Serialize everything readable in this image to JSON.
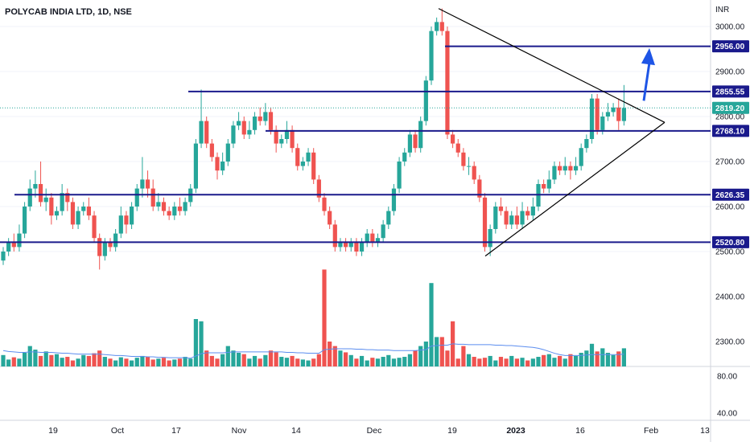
{
  "chart_data": {
    "type": "candlestick",
    "title": "POLYCAB INDIA LTD, 1D, NSE",
    "currency": "INR",
    "colors": {
      "up": "#26a69a",
      "down": "#ef5350",
      "level": "#1a1a8c",
      "last": "#26a69a",
      "volume_ma": "#5b8def",
      "trend": "#000000",
      "arrow": "#1e55e6"
    },
    "price_axis": {
      "ticks": [
        2500,
        2600,
        2700,
        2800,
        2900,
        3000
      ],
      "labels": [
        "2500.00",
        "2600.00",
        "2700.00",
        "2800.00",
        "2900.00",
        "3000.00"
      ],
      "ylim": [
        2455,
        3035
      ]
    },
    "volume_axis": {
      "ticks": [
        "2300.00",
        "2400.00"
      ]
    },
    "indicator_axis": {
      "ticks": [
        "80.00",
        "40.00"
      ]
    },
    "x_ticks": [
      "19",
      "Oct",
      "17",
      "Nov",
      "14",
      "Dec",
      "19",
      "2023",
      "16",
      "Feb",
      "13"
    ],
    "levels": [
      {
        "value": 2956.0,
        "label": "2956.00"
      },
      {
        "value": 2855.55,
        "label": "2855.55"
      },
      {
        "value": 2768.1,
        "label": "2768.10"
      },
      {
        "value": 2626.35,
        "label": "2626.35"
      },
      {
        "value": 2520.8,
        "label": "2520.80"
      }
    ],
    "last_price": {
      "value": 2819.2,
      "label": "2819.20"
    },
    "candles": [
      [
        2480,
        2500,
        2470,
        2510
      ],
      [
        2500,
        2520,
        2490,
        2530
      ],
      [
        2520,
        2510,
        2500,
        2540
      ],
      [
        2510,
        2540,
        2500,
        2560
      ],
      [
        2540,
        2600,
        2530,
        2610
      ],
      [
        2600,
        2640,
        2590,
        2660
      ],
      [
        2640,
        2650,
        2620,
        2680
      ],
      [
        2650,
        2610,
        2600,
        2700
      ],
      [
        2610,
        2620,
        2590,
        2640
      ],
      [
        2620,
        2580,
        2560,
        2630
      ],
      [
        2580,
        2590,
        2570,
        2600
      ],
      [
        2590,
        2630,
        2580,
        2650
      ],
      [
        2630,
        2610,
        2590,
        2640
      ],
      [
        2610,
        2560,
        2550,
        2620
      ],
      [
        2560,
        2590,
        2550,
        2600
      ],
      [
        2590,
        2600,
        2580,
        2610
      ],
      [
        2600,
        2580,
        2570,
        2620
      ],
      [
        2580,
        2530,
        2520,
        2590
      ],
      [
        2530,
        2490,
        2460,
        2540
      ],
      [
        2490,
        2520,
        2480,
        2530
      ],
      [
        2520,
        2510,
        2500,
        2530
      ],
      [
        2510,
        2540,
        2500,
        2550
      ],
      [
        2540,
        2580,
        2530,
        2600
      ],
      [
        2580,
        2560,
        2540,
        2590
      ],
      [
        2560,
        2600,
        2550,
        2610
      ],
      [
        2600,
        2640,
        2590,
        2650
      ],
      [
        2640,
        2660,
        2620,
        2710
      ],
      [
        2660,
        2640,
        2620,
        2680
      ],
      [
        2640,
        2600,
        2590,
        2660
      ],
      [
        2600,
        2610,
        2590,
        2630
      ],
      [
        2610,
        2590,
        2580,
        2620
      ],
      [
        2590,
        2580,
        2570,
        2600
      ],
      [
        2580,
        2600,
        2570,
        2610
      ],
      [
        2600,
        2590,
        2580,
        2620
      ],
      [
        2590,
        2610,
        2580,
        2620
      ],
      [
        2610,
        2640,
        2600,
        2650
      ],
      [
        2640,
        2740,
        2630,
        2750
      ],
      [
        2740,
        2790,
        2730,
        2860
      ],
      [
        2790,
        2740,
        2730,
        2800
      ],
      [
        2740,
        2710,
        2700,
        2750
      ],
      [
        2710,
        2680,
        2660,
        2720
      ],
      [
        2680,
        2700,
        2670,
        2720
      ],
      [
        2700,
        2740,
        2690,
        2750
      ],
      [
        2740,
        2780,
        2730,
        2790
      ],
      [
        2780,
        2790,
        2770,
        2810
      ],
      [
        2790,
        2760,
        2750,
        2800
      ],
      [
        2760,
        2770,
        2750,
        2790
      ],
      [
        2770,
        2800,
        2760,
        2810
      ],
      [
        2800,
        2790,
        2780,
        2820
      ],
      [
        2790,
        2810,
        2780,
        2830
      ],
      [
        2810,
        2770,
        2760,
        2820
      ],
      [
        2770,
        2740,
        2720,
        2780
      ],
      [
        2740,
        2750,
        2730,
        2760
      ],
      [
        2750,
        2770,
        2740,
        2790
      ],
      [
        2770,
        2730,
        2720,
        2780
      ],
      [
        2730,
        2690,
        2680,
        2740
      ],
      [
        2690,
        2700,
        2680,
        2710
      ],
      [
        2700,
        2720,
        2690,
        2730
      ],
      [
        2720,
        2660,
        2650,
        2730
      ],
      [
        2660,
        2620,
        2610,
        2670
      ],
      [
        2620,
        2590,
        2580,
        2630
      ],
      [
        2590,
        2560,
        2550,
        2600
      ],
      [
        2560,
        2510,
        2500,
        2570
      ],
      [
        2510,
        2520,
        2500,
        2530
      ],
      [
        2520,
        2510,
        2500,
        2530
      ],
      [
        2510,
        2520,
        2500,
        2530
      ],
      [
        2520,
        2500,
        2490,
        2530
      ],
      [
        2500,
        2520,
        2490,
        2530
      ],
      [
        2520,
        2540,
        2510,
        2550
      ],
      [
        2540,
        2520,
        2510,
        2550
      ],
      [
        2520,
        2530,
        2510,
        2540
      ],
      [
        2530,
        2560,
        2520,
        2570
      ],
      [
        2560,
        2590,
        2550,
        2600
      ],
      [
        2590,
        2640,
        2580,
        2650
      ],
      [
        2640,
        2700,
        2630,
        2710
      ],
      [
        2700,
        2720,
        2690,
        2730
      ],
      [
        2720,
        2760,
        2710,
        2770
      ],
      [
        2760,
        2730,
        2720,
        2770
      ],
      [
        2730,
        2790,
        2720,
        2800
      ],
      [
        2790,
        2880,
        2780,
        2890
      ],
      [
        2880,
        2990,
        2870,
        3000
      ],
      [
        2990,
        3010,
        2980,
        3020
      ],
      [
        3010,
        2990,
        2980,
        3040
      ],
      [
        2990,
        2760,
        2750,
        3000
      ],
      [
        2760,
        2740,
        2730,
        2770
      ],
      [
        2740,
        2720,
        2710,
        2750
      ],
      [
        2720,
        2690,
        2680,
        2730
      ],
      [
        2690,
        2690,
        2670,
        2710
      ],
      [
        2690,
        2660,
        2650,
        2700
      ],
      [
        2660,
        2620,
        2610,
        2670
      ],
      [
        2620,
        2510,
        2500,
        2630
      ],
      [
        2510,
        2550,
        2490,
        2560
      ],
      [
        2550,
        2600,
        2540,
        2610
      ],
      [
        2600,
        2590,
        2580,
        2620
      ],
      [
        2590,
        2560,
        2550,
        2600
      ],
      [
        2560,
        2580,
        2550,
        2590
      ],
      [
        2580,
        2560,
        2550,
        2600
      ],
      [
        2560,
        2590,
        2550,
        2610
      ],
      [
        2590,
        2580,
        2570,
        2600
      ],
      [
        2580,
        2600,
        2570,
        2620
      ],
      [
        2600,
        2650,
        2590,
        2660
      ],
      [
        2650,
        2640,
        2630,
        2660
      ],
      [
        2640,
        2660,
        2630,
        2680
      ],
      [
        2660,
        2690,
        2650,
        2700
      ],
      [
        2690,
        2680,
        2670,
        2700
      ],
      [
        2680,
        2690,
        2670,
        2710
      ],
      [
        2690,
        2680,
        2660,
        2700
      ],
      [
        2680,
        2690,
        2670,
        2710
      ],
      [
        2690,
        2730,
        2680,
        2740
      ],
      [
        2730,
        2750,
        2720,
        2760
      ],
      [
        2750,
        2840,
        2740,
        2850
      ],
      [
        2840,
        2770,
        2760,
        2850
      ],
      [
        2770,
        2800,
        2760,
        2810
      ],
      [
        2800,
        2810,
        2790,
        2830
      ],
      [
        2810,
        2820,
        2800,
        2830
      ],
      [
        2820,
        2790,
        2770,
        2840
      ],
      [
        2790,
        2819,
        2780,
        2870
      ]
    ],
    "volumes": [
      2270,
      2260,
      2265,
      2262,
      2275,
      2290,
      2282,
      2268,
      2278,
      2270,
      2272,
      2264,
      2266,
      2258,
      2262,
      2270,
      2268,
      2274,
      2280,
      2266,
      2262,
      2258,
      2265,
      2262,
      2258,
      2264,
      2268,
      2266,
      2260,
      2262,
      2264,
      2258,
      2260,
      2262,
      2266,
      2262,
      2350,
      2345,
      2280,
      2268,
      2262,
      2272,
      2290,
      2280,
      2275,
      2272,
      2262,
      2268,
      2262,
      2270,
      2280,
      2276,
      2266,
      2264,
      2268,
      2262,
      2260,
      2258,
      2262,
      2272,
      2460,
      2300,
      2290,
      2280,
      2276,
      2270,
      2262,
      2268,
      2258,
      2264,
      2262,
      2266,
      2270,
      2262,
      2264,
      2266,
      2272,
      2280,
      2290,
      2300,
      2430,
      2310,
      2310,
      2280,
      2345,
      2262,
      2290,
      2272,
      2266,
      2262,
      2264,
      2268,
      2258,
      2266,
      2262,
      2268,
      2262,
      2264,
      2258,
      2262,
      2266,
      2270,
      2272,
      2264,
      2268,
      2262,
      2272,
      2268,
      2275,
      2280,
      2295,
      2278,
      2285,
      2275,
      2270,
      2278,
      2285
    ],
    "volume_ma": [
      2280,
      2278,
      2277,
      2276,
      2276,
      2277,
      2277,
      2276,
      2276,
      2276,
      2275,
      2274,
      2274,
      2273,
      2272,
      2272,
      2272,
      2272,
      2272,
      2271,
      2270,
      2269,
      2269,
      2268,
      2267,
      2267,
      2267,
      2266,
      2266,
      2265,
      2265,
      2264,
      2264,
      2264,
      2264,
      2263,
      2268,
      2273,
      2275,
      2275,
      2275,
      2275,
      2276,
      2277,
      2277,
      2277,
      2277,
      2277,
      2277,
      2277,
      2277,
      2277,
      2277,
      2276,
      2276,
      2275,
      2275,
      2274,
      2274,
      2274,
      2282,
      2283,
      2284,
      2284,
      2284,
      2284,
      2283,
      2283,
      2282,
      2282,
      2281,
      2281,
      2281,
      2280,
      2280,
      2280,
      2280,
      2280,
      2281,
      2282,
      2290,
      2291,
      2292,
      2292,
      2295,
      2294,
      2294,
      2293,
      2293,
      2293,
      2293,
      2293,
      2292,
      2292,
      2291,
      2291,
      2290,
      2289,
      2288,
      2287,
      2285,
      2282,
      2278,
      2274,
      2271,
      2269,
      2269,
      2269,
      2269,
      2270,
      2271,
      2271,
      2271,
      2271,
      2271,
      2271,
      2272
    ]
  }
}
